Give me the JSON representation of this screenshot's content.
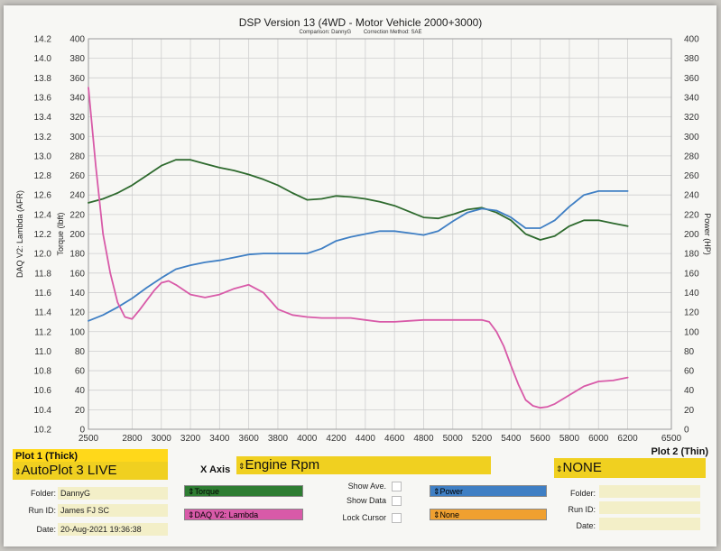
{
  "chart_data": {
    "type": "line",
    "title": "DSP Version 13 (4WD - Motor Vehicle 2000+3000)",
    "subtitle": {
      "comparison": "Comparison: DannyG",
      "correction": "Correction Method: SAE"
    },
    "x_ticks": [
      2500,
      2800,
      3000,
      3200,
      3400,
      3600,
      3800,
      4000,
      4200,
      4400,
      4600,
      4800,
      5000,
      5200,
      5400,
      5600,
      5800,
      6000,
      6200,
      6500
    ],
    "xlim": [
      2500,
      6500
    ],
    "axes": {
      "lambda": {
        "label": "DAQ V2: Lambda (AFR)",
        "ylim": [
          10.2,
          14.2
        ],
        "ticks": [
          "14.2",
          "14.0",
          "13.8",
          "13.6",
          "13.4",
          "13.2",
          "13.0",
          "12.8",
          "12.6",
          "12.4",
          "12.2",
          "12.0",
          "11.8",
          "11.6",
          "11.4",
          "11.2",
          "11.0",
          "10.8",
          "10.6",
          "10.4",
          "10.2"
        ]
      },
      "torque": {
        "label": "Torque (lbft)",
        "ylim": [
          0,
          400
        ],
        "ticks": [
          400,
          380,
          360,
          340,
          320,
          300,
          280,
          260,
          240,
          220,
          200,
          180,
          160,
          140,
          120,
          100,
          80,
          60,
          40,
          20,
          0
        ]
      },
      "power": {
        "label": "Power (HP)",
        "ylim": [
          0,
          400
        ],
        "ticks": [
          400,
          380,
          360,
          340,
          320,
          300,
          280,
          260,
          240,
          220,
          200,
          180,
          160,
          140,
          120,
          100,
          80,
          60,
          40,
          20,
          0
        ]
      }
    },
    "grid": true,
    "series": [
      {
        "name": "Torque",
        "color": "#2e6a2e",
        "axis": "torque",
        "x": [
          2500,
          2600,
          2700,
          2800,
          2900,
          3000,
          3100,
          3200,
          3300,
          3400,
          3500,
          3600,
          3700,
          3800,
          3900,
          4000,
          4100,
          4200,
          4300,
          4400,
          4500,
          4600,
          4700,
          4800,
          4900,
          5000,
          5100,
          5200,
          5300,
          5400,
          5500,
          5600,
          5700,
          5800,
          5900,
          6000,
          6100,
          6200
        ],
        "values": [
          232,
          236,
          242,
          250,
          260,
          270,
          276,
          276,
          272,
          268,
          265,
          261,
          256,
          250,
          242,
          235,
          236,
          239,
          238,
          236,
          233,
          229,
          223,
          217,
          216,
          220,
          225,
          227,
          222,
          214,
          200,
          194,
          198,
          208,
          214,
          214,
          211,
          208
        ]
      },
      {
        "name": "Power",
        "color": "#3f7fc4",
        "axis": "power",
        "x": [
          2500,
          2600,
          2700,
          2800,
          2900,
          3000,
          3100,
          3200,
          3300,
          3400,
          3500,
          3600,
          3700,
          3800,
          3900,
          4000,
          4100,
          4200,
          4300,
          4400,
          4500,
          4600,
          4700,
          4800,
          4900,
          5000,
          5100,
          5200,
          5300,
          5400,
          5500,
          5600,
          5700,
          5800,
          5900,
          6000,
          6100,
          6200
        ],
        "values": [
          111,
          117,
          125,
          134,
          145,
          155,
          164,
          168,
          171,
          173,
          176,
          179,
          180,
          180,
          180,
          180,
          185,
          193,
          197,
          200,
          203,
          203,
          201,
          199,
          203,
          213,
          222,
          226,
          224,
          217,
          206,
          206,
          214,
          228,
          240,
          244,
          244,
          244
        ]
      },
      {
        "name": "DAQ V2: Lambda",
        "color": "#d85aa8",
        "axis": "lambda",
        "x": [
          2500,
          2550,
          2600,
          2650,
          2700,
          2750,
          2800,
          2850,
          2900,
          2950,
          3000,
          3050,
          3100,
          3200,
          3300,
          3400,
          3500,
          3600,
          3700,
          3800,
          3900,
          4000,
          4100,
          4200,
          4300,
          4400,
          4500,
          4600,
          4700,
          4800,
          4900,
          5000,
          5100,
          5200,
          5250,
          5300,
          5350,
          5400,
          5450,
          5500,
          5550,
          5600,
          5650,
          5700,
          5800,
          5900,
          6000,
          6100,
          6200
        ],
        "values": [
          13.7,
          12.9,
          12.2,
          11.8,
          11.5,
          11.35,
          11.33,
          11.42,
          11.52,
          11.62,
          11.7,
          11.72,
          11.68,
          11.58,
          11.55,
          11.58,
          11.64,
          11.68,
          11.6,
          11.43,
          11.37,
          11.35,
          11.34,
          11.34,
          11.34,
          11.32,
          11.3,
          11.3,
          11.31,
          11.32,
          11.32,
          11.32,
          11.32,
          11.32,
          11.3,
          11.2,
          11.05,
          10.85,
          10.66,
          10.5,
          10.44,
          10.42,
          10.43,
          10.46,
          10.55,
          10.64,
          10.69,
          10.7,
          10.73
        ]
      }
    ]
  },
  "plot1": {
    "title": "Plot 1 (Thick)",
    "selection": "AutoPlot 3 LIVE",
    "folder_label": "Folder:",
    "folder_value": "DannyG",
    "runid_label": "Run ID:",
    "runid_value": "James FJ SC",
    "date_label": "Date:",
    "date_value": "20-Aug-2021 19:36:38",
    "channel1": "Torque",
    "channel1_color": "#2e7d32",
    "channel2": "DAQ V2: Lambda",
    "channel2_color": "#d85aa8"
  },
  "xaxis": {
    "label": "X Axis",
    "value": "Engine Rpm"
  },
  "options": {
    "show_ave": "Show Ave.",
    "show_data": "Show Data",
    "lock_cursor": "Lock Cursor"
  },
  "plot2": {
    "title": "Plot 2 (Thin)",
    "selection": "NONE",
    "folder_label": "Folder:",
    "runid_label": "Run ID:",
    "date_label": "Date:",
    "channel1": "Power",
    "channel1_color": "#3f7fc4",
    "channel2": "None",
    "channel2_color": "#f0a030"
  }
}
